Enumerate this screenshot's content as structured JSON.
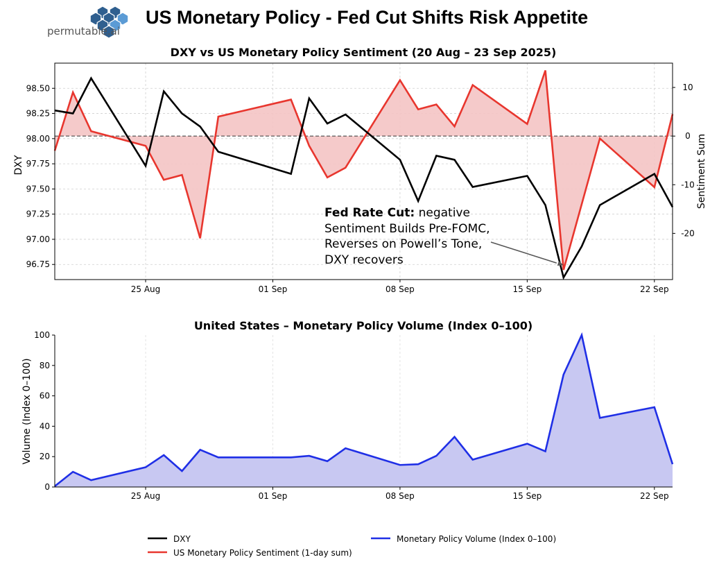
{
  "page_title": "US Monetary Policy - Fed Cut Shifts Risk Appetite",
  "logo_text": "permutable.ai",
  "colors": {
    "dxy": "#000000",
    "sentiment": "#e8362e",
    "sentiment_fill": "#f4c4c4",
    "volume": "#1f2fe6",
    "volume_fill": "#c8c8f2",
    "logo_hex_dark": "#2f5f8f",
    "logo_hex_light": "#5b9bd5"
  },
  "chart_data": [
    {
      "id": "top",
      "type": "line",
      "title": "DXY vs US Monetary Policy Sentiment (20 Aug – 23 Sep 2025)",
      "ylabel_left": "DXY",
      "ylabel_right": "Sentiment Sum",
      "ylim_left": [
        96.6,
        98.75
      ],
      "ylim_right": [
        -29.5,
        15
      ],
      "xlim": [
        "2025-08-20",
        "2025-09-23"
      ],
      "x_ticks": [
        {
          "date": "2025-08-25",
          "label": "25 Aug"
        },
        {
          "date": "2025-09-01",
          "label": "01 Sep"
        },
        {
          "date": "2025-09-08",
          "label": "08 Sep"
        },
        {
          "date": "2025-09-15",
          "label": "15 Sep"
        },
        {
          "date": "2025-09-22",
          "label": "22 Sep"
        }
      ],
      "y_ticks_left": [
        "96.75",
        "97.00",
        "97.25",
        "97.50",
        "97.75",
        "98.00",
        "98.25",
        "98.50"
      ],
      "y_ticks_right": [
        "-20",
        "-10",
        "0",
        "10"
      ],
      "grid": true,
      "zero_line": true,
      "series": [
        {
          "name": "DXY",
          "axis": "left",
          "points": [
            [
              "2025-08-20",
              98.28
            ],
            [
              "2025-08-21",
              98.25
            ],
            [
              "2025-08-22",
              98.6
            ],
            [
              "2025-08-25",
              97.73
            ],
            [
              "2025-08-26",
              98.47
            ],
            [
              "2025-08-27",
              98.25
            ],
            [
              "2025-08-28",
              98.12
            ],
            [
              "2025-08-29",
              97.87
            ],
            [
              "2025-09-02",
              97.65
            ],
            [
              "2025-09-03",
              98.4
            ],
            [
              "2025-09-04",
              98.15
            ],
            [
              "2025-09-05",
              98.24
            ],
            [
              "2025-09-08",
              97.79
            ],
            [
              "2025-09-09",
              97.38
            ],
            [
              "2025-09-10",
              97.83
            ],
            [
              "2025-09-11",
              97.79
            ],
            [
              "2025-09-12",
              97.52
            ],
            [
              "2025-09-15",
              97.63
            ],
            [
              "2025-09-16",
              97.34
            ],
            [
              "2025-09-17",
              96.62
            ],
            [
              "2025-09-18",
              96.93
            ],
            [
              "2025-09-19",
              97.34
            ],
            [
              "2025-09-22",
              97.65
            ],
            [
              "2025-09-23",
              97.32
            ]
          ]
        },
        {
          "name": "US Monetary Policy Sentiment (1-day sum)",
          "axis": "right",
          "points": [
            [
              "2025-08-20",
              -3
            ],
            [
              "2025-08-21",
              9
            ],
            [
              "2025-08-22",
              1
            ],
            [
              "2025-08-25",
              -2
            ],
            [
              "2025-08-26",
              -9
            ],
            [
              "2025-08-27",
              -8
            ],
            [
              "2025-08-28",
              -21
            ],
            [
              "2025-08-29",
              4
            ],
            [
              "2025-09-02",
              7.5
            ],
            [
              "2025-09-03",
              -2
            ],
            [
              "2025-09-04",
              -8.5
            ],
            [
              "2025-09-05",
              -6.5
            ],
            [
              "2025-09-08",
              11.5
            ],
            [
              "2025-09-09",
              5.5
            ],
            [
              "2025-09-10",
              6.5
            ],
            [
              "2025-09-11",
              2
            ],
            [
              "2025-09-12",
              10.5
            ],
            [
              "2025-09-15",
              2.5
            ],
            [
              "2025-09-16",
              13.5
            ],
            [
              "2025-09-17",
              -27.5
            ],
            [
              "2025-09-19",
              -0.5
            ],
            [
              "2025-09-22",
              -10.5
            ],
            [
              "2025-09-23",
              4.5
            ]
          ]
        }
      ],
      "annotation": {
        "bold": "Fed Rate Cut:",
        "line1": " negative",
        "line2": "Sentiment Builds Pre-FOMC,",
        "line3": "Reverses on Powell’s Tone,",
        "line4": "DXY recovers",
        "target_date": "2025-09-17",
        "target_dxy": 96.62
      }
    },
    {
      "id": "bottom",
      "type": "area",
      "title": "United States – Monetary Policy Volume (Index 0–100)",
      "ylabel": "Volume (Index 0–100)",
      "ylim": [
        0,
        100
      ],
      "xlim": [
        "2025-08-20",
        "2025-09-23"
      ],
      "x_ticks": [
        {
          "date": "2025-08-25",
          "label": "25 Aug"
        },
        {
          "date": "2025-09-01",
          "label": "01 Sep"
        },
        {
          "date": "2025-09-08",
          "label": "08 Sep"
        },
        {
          "date": "2025-09-15",
          "label": "15 Sep"
        },
        {
          "date": "2025-09-22",
          "label": "22 Sep"
        }
      ],
      "y_ticks": [
        "0",
        "20",
        "40",
        "60",
        "80",
        "100"
      ],
      "series": [
        {
          "name": "Monetary Policy Volume (Index 0–100)",
          "points": [
            [
              "2025-08-20",
              0.5
            ],
            [
              "2025-08-21",
              10
            ],
            [
              "2025-08-22",
              4.5
            ],
            [
              "2025-08-25",
              13
            ],
            [
              "2025-08-26",
              21
            ],
            [
              "2025-08-27",
              10.5
            ],
            [
              "2025-08-28",
              24.5
            ],
            [
              "2025-08-29",
              19.5
            ],
            [
              "2025-09-02",
              19.5
            ],
            [
              "2025-09-03",
              20.5
            ],
            [
              "2025-09-04",
              17
            ],
            [
              "2025-09-05",
              25.5
            ],
            [
              "2025-09-08",
              14.5
            ],
            [
              "2025-09-09",
              15
            ],
            [
              "2025-09-10",
              20.5
            ],
            [
              "2025-09-11",
              33
            ],
            [
              "2025-09-12",
              18
            ],
            [
              "2025-09-15",
              28.5
            ],
            [
              "2025-09-16",
              23.5
            ],
            [
              "2025-09-17",
              74
            ],
            [
              "2025-09-18",
              100
            ],
            [
              "2025-09-19",
              45.5
            ],
            [
              "2025-09-22",
              52.5
            ],
            [
              "2025-09-23",
              15
            ]
          ]
        }
      ]
    }
  ],
  "legend": [
    {
      "label": "DXY",
      "color_key": "dxy"
    },
    {
      "label": "US Monetary Policy Sentiment (1-day sum)",
      "color_key": "sentiment"
    },
    {
      "label": "Monetary Policy Volume (Index 0–100)",
      "color_key": "volume"
    }
  ]
}
